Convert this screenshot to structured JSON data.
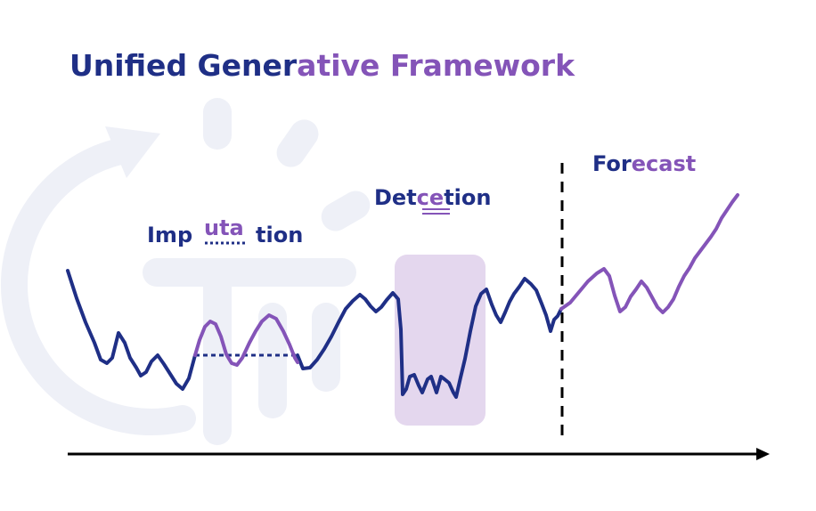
{
  "title": {
    "part1": "Unified Gener",
    "part2": "ative Framework"
  },
  "labels": {
    "imputation": {
      "part1": "Imp",
      "part2": "uta",
      "part3": "tion"
    },
    "detection": {
      "part1": "Det",
      "part2": "ce",
      "part3": "tion"
    },
    "forecast": {
      "part1": "For",
      "part2": "ecast"
    }
  },
  "colors": {
    "navy": "#1f2f86",
    "purple": "#8454b8",
    "highlight": "#e4d7ee",
    "watermark": "#eef0f7"
  },
  "icons": {
    "background": "cycle-arrow-icon"
  }
}
